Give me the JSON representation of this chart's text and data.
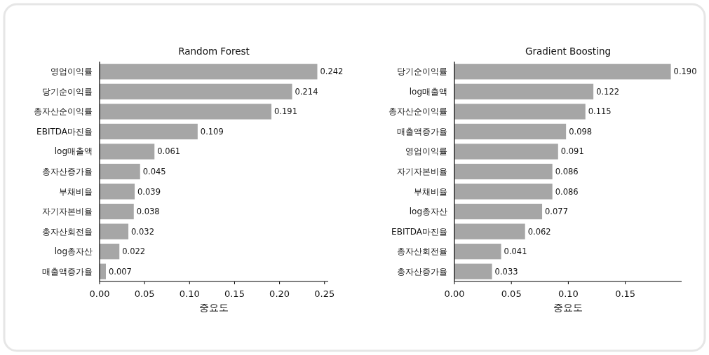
{
  "chart_data": [
    {
      "type": "bar",
      "orientation": "horizontal",
      "title": "Random Forest",
      "xlabel": "중요도",
      "categories": [
        "영업이익률",
        "당기순이익률",
        "총자산순이익률",
        "EBITDA마진율",
        "log매출액",
        "총자산증가율",
        "부채비율",
        "자기자본비율",
        "총자산회전율",
        "log총자산",
        "매출액증가율"
      ],
      "values": [
        0.242,
        0.214,
        0.191,
        0.109,
        0.061,
        0.045,
        0.039,
        0.038,
        0.032,
        0.022,
        0.007
      ],
      "value_labels": [
        "0.242",
        "0.214",
        "0.191",
        "0.109",
        "0.061",
        "0.045",
        "0.039",
        "0.038",
        "0.032",
        "0.022",
        "0.007"
      ],
      "color": "#a6a6a6",
      "xlim": [
        0,
        0.2541
      ],
      "xticks": [
        {
          "value": 0,
          "label": "0.00"
        },
        {
          "value": 0.05,
          "label": "0.05"
        },
        {
          "value": 0.1,
          "label": "0.10"
        },
        {
          "value": 0.15,
          "label": "0.15"
        },
        {
          "value": 0.2,
          "label": "0.20"
        },
        {
          "value": 0.25,
          "label": "0.25"
        }
      ]
    },
    {
      "type": "bar",
      "orientation": "horizontal",
      "title": "Gradient Boosting",
      "xlabel": "중요도",
      "categories": [
        "당기순이익률",
        "log매출액",
        "총자산순이익률",
        "매출액증가율",
        "영업이익률",
        "자기자본비율",
        "부채비율",
        "log총자산",
        "EBITDA마진율",
        "총자산회전율",
        "총자산증가율"
      ],
      "values": [
        0.19,
        0.122,
        0.115,
        0.098,
        0.091,
        0.086,
        0.086,
        0.077,
        0.062,
        0.041,
        0.033
      ],
      "value_labels": [
        "0.190",
        "0.122",
        "0.115",
        "0.098",
        "0.091",
        "0.086",
        "0.086",
        "0.077",
        "0.062",
        "0.041",
        "0.033"
      ],
      "color": "#a6a6a6",
      "xlim": [
        0,
        0.1995
      ],
      "xticks": [
        {
          "value": 0,
          "label": "0.00"
        },
        {
          "value": 0.05,
          "label": "0.05"
        },
        {
          "value": 0.1,
          "label": "0.10"
        },
        {
          "value": 0.15,
          "label": "0.15"
        }
      ]
    }
  ]
}
